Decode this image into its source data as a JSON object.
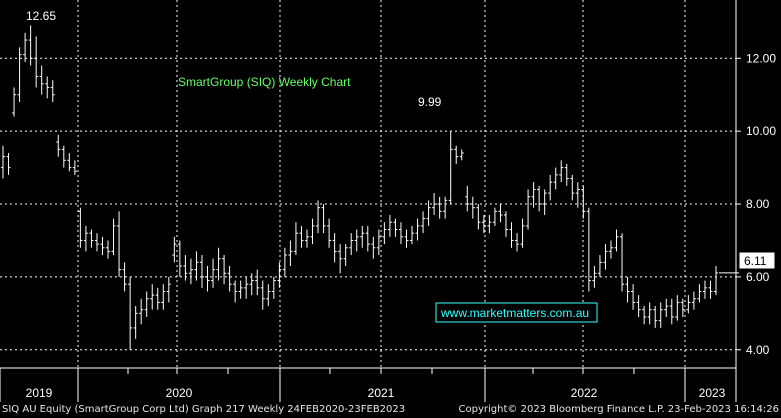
{
  "chart_data": {
    "type": "bar",
    "title": "SmartGroup (SIQ) Weekly Chart",
    "watermark": "www.marketmatters.com.au",
    "x_labels": [
      "2019",
      "2020",
      "2021",
      "2022",
      "2023"
    ],
    "y_ticks": [
      "12.00",
      "10.00",
      "8.00",
      "6.00",
      "4.00"
    ],
    "ylim": [
      3.5,
      13.6
    ],
    "annotations": [
      {
        "label": "12.65",
        "value": 12.65
      },
      {
        "label": "9.99",
        "value": 9.99
      }
    ],
    "last_price": {
      "label": "6.11",
      "value": 6.11
    },
    "colors": {
      "background": "#000000",
      "bars": "#ffffff",
      "grid": "#ffffff",
      "title": "#66ff66",
      "watermark": "#33ffff"
    },
    "bars_ohlc": [
      [
        9.0,
        9.6,
        8.7,
        9.3
      ],
      [
        9.3,
        9.4,
        8.8,
        9.0
      ],
      [
        10.5,
        11.2,
        10.4,
        11.0
      ],
      [
        11.0,
        12.3,
        10.8,
        12.1
      ],
      [
        12.1,
        12.7,
        11.9,
        12.5
      ],
      [
        12.5,
        12.9,
        11.8,
        12.0
      ],
      [
        12.0,
        12.6,
        11.2,
        11.5
      ],
      [
        11.5,
        11.8,
        11.0,
        11.3
      ],
      [
        11.3,
        11.5,
        10.9,
        11.2
      ],
      [
        11.2,
        11.4,
        10.8,
        11.0
      ],
      [
        9.7,
        9.9,
        9.3,
        9.5
      ],
      [
        9.5,
        9.6,
        9.0,
        9.2
      ],
      [
        9.2,
        9.4,
        8.9,
        9.0
      ],
      [
        9.0,
        9.2,
        8.8,
        8.9
      ],
      [
        7.8,
        7.9,
        6.8,
        7.0
      ],
      [
        7.0,
        7.4,
        6.7,
        7.2
      ],
      [
        7.2,
        7.3,
        6.8,
        7.0
      ],
      [
        7.0,
        7.2,
        6.7,
        6.9
      ],
      [
        6.9,
        7.1,
        6.6,
        6.8
      ],
      [
        6.8,
        7.0,
        6.5,
        6.7
      ],
      [
        6.7,
        7.6,
        6.6,
        7.4
      ],
      [
        7.4,
        7.8,
        6.0,
        6.2
      ],
      [
        6.2,
        6.4,
        5.6,
        5.8
      ],
      [
        5.8,
        6.0,
        4.0,
        4.6
      ],
      [
        4.6,
        5.2,
        4.3,
        5.0
      ],
      [
        5.0,
        5.4,
        4.7,
        5.1
      ],
      [
        5.1,
        5.6,
        4.9,
        5.4
      ],
      [
        5.4,
        5.8,
        5.1,
        5.5
      ],
      [
        5.5,
        5.7,
        5.1,
        5.3
      ],
      [
        5.3,
        5.8,
        5.1,
        5.6
      ],
      [
        5.6,
        6.0,
        5.3,
        5.8
      ],
      [
        6.6,
        7.1,
        6.4,
        6.9
      ],
      [
        6.9,
        7.0,
        6.0,
        6.3
      ],
      [
        6.3,
        6.6,
        5.9,
        6.1
      ],
      [
        6.1,
        6.5,
        5.8,
        6.2
      ],
      [
        6.2,
        6.7,
        5.9,
        6.4
      ],
      [
        6.4,
        6.6,
        5.7,
        6.0
      ],
      [
        6.0,
        6.3,
        5.6,
        5.9
      ],
      [
        5.9,
        6.5,
        5.7,
        6.2
      ],
      [
        6.2,
        6.8,
        5.9,
        6.5
      ],
      [
        6.5,
        6.6,
        5.8,
        6.1
      ],
      [
        6.1,
        6.3,
        5.6,
        5.8
      ],
      [
        5.8,
        5.9,
        5.3,
        5.6
      ],
      [
        5.6,
        5.9,
        5.4,
        5.7
      ],
      [
        5.7,
        6.0,
        5.4,
        5.8
      ],
      [
        5.8,
        6.1,
        5.5,
        5.9
      ],
      [
        5.9,
        6.2,
        5.5,
        5.7
      ],
      [
        5.7,
        5.9,
        5.1,
        5.4
      ],
      [
        5.4,
        5.8,
        5.2,
        5.6
      ],
      [
        5.6,
        6.0,
        5.4,
        5.9
      ],
      [
        5.9,
        6.4,
        5.7,
        6.2
      ],
      [
        6.2,
        6.8,
        6.0,
        6.6
      ],
      [
        6.6,
        7.0,
        6.3,
        6.7
      ],
      [
        6.7,
        7.5,
        6.6,
        7.2
      ],
      [
        7.2,
        7.4,
        6.8,
        7.0
      ],
      [
        7.0,
        7.3,
        6.8,
        7.1
      ],
      [
        7.1,
        7.6,
        6.9,
        7.4
      ],
      [
        7.4,
        8.1,
        7.2,
        7.9
      ],
      [
        7.9,
        8.0,
        7.2,
        7.4
      ],
      [
        7.4,
        7.6,
        6.8,
        7.0
      ],
      [
        7.0,
        7.2,
        6.4,
        6.7
      ],
      [
        6.7,
        6.9,
        6.1,
        6.5
      ],
      [
        6.5,
        6.9,
        6.3,
        6.8
      ],
      [
        6.8,
        7.2,
        6.6,
        7.0
      ],
      [
        7.0,
        7.3,
        6.7,
        7.1
      ],
      [
        7.1,
        7.4,
        6.8,
        7.2
      ],
      [
        7.2,
        7.4,
        6.7,
        6.9
      ],
      [
        6.9,
        7.1,
        6.5,
        6.8
      ],
      [
        6.8,
        7.3,
        6.6,
        7.1
      ],
      [
        7.1,
        7.5,
        6.9,
        7.3
      ],
      [
        7.3,
        7.7,
        7.1,
        7.5
      ],
      [
        7.5,
        7.6,
        7.1,
        7.3
      ],
      [
        7.3,
        7.5,
        6.9,
        7.1
      ],
      [
        7.1,
        7.3,
        6.8,
        7.0
      ],
      [
        7.0,
        7.4,
        6.9,
        7.2
      ],
      [
        7.2,
        7.6,
        7.0,
        7.4
      ],
      [
        7.4,
        7.8,
        7.2,
        7.6
      ],
      [
        7.6,
        8.1,
        7.4,
        7.9
      ],
      [
        7.9,
        8.3,
        7.7,
        8.0
      ],
      [
        8.0,
        8.2,
        7.6,
        7.8
      ],
      [
        7.8,
        8.2,
        7.6,
        8.1
      ],
      [
        8.1,
        10.0,
        8.0,
        9.5
      ],
      [
        9.5,
        9.6,
        9.1,
        9.3
      ],
      [
        9.3,
        9.5,
        9.2,
        9.4
      ],
      [
        8.2,
        8.5,
        7.8,
        8.0
      ],
      [
        8.0,
        8.2,
        7.6,
        7.9
      ],
      [
        7.9,
        8.0,
        7.3,
        7.5
      ],
      [
        7.5,
        7.7,
        7.2,
        7.4
      ],
      [
        7.4,
        7.7,
        7.2,
        7.5
      ],
      [
        7.5,
        7.9,
        7.4,
        7.8
      ],
      [
        7.8,
        8.0,
        7.5,
        7.7
      ],
      [
        7.7,
        7.8,
        7.1,
        7.3
      ],
      [
        7.3,
        7.5,
        6.8,
        7.0
      ],
      [
        7.0,
        7.2,
        6.7,
        6.9
      ],
      [
        6.9,
        7.6,
        6.8,
        7.4
      ],
      [
        7.4,
        8.4,
        7.3,
        8.2
      ],
      [
        8.2,
        8.6,
        7.9,
        8.4
      ],
      [
        8.4,
        8.5,
        7.8,
        8.0
      ],
      [
        8.0,
        8.4,
        7.7,
        8.3
      ],
      [
        8.3,
        8.8,
        8.1,
        8.6
      ],
      [
        8.6,
        9.0,
        8.4,
        8.8
      ],
      [
        8.8,
        9.2,
        8.6,
        9.0
      ],
      [
        9.0,
        9.1,
        8.5,
        8.7
      ],
      [
        8.7,
        8.8,
        8.1,
        8.3
      ],
      [
        8.3,
        8.6,
        7.9,
        8.4
      ],
      [
        8.4,
        8.5,
        7.6,
        7.8
      ],
      [
        7.8,
        7.9,
        5.6,
        5.9
      ],
      [
        5.9,
        6.3,
        5.7,
        6.1
      ],
      [
        6.1,
        6.6,
        6.0,
        6.4
      ],
      [
        6.4,
        6.9,
        6.2,
        6.7
      ],
      [
        6.7,
        7.0,
        6.5,
        6.8
      ],
      [
        6.8,
        7.3,
        6.7,
        7.1
      ],
      [
        7.1,
        7.2,
        5.6,
        5.8
      ],
      [
        5.8,
        6.0,
        5.3,
        5.6
      ],
      [
        5.6,
        5.8,
        5.1,
        5.3
      ],
      [
        5.3,
        5.5,
        4.9,
        5.1
      ],
      [
        5.1,
        5.2,
        4.7,
        4.9
      ],
      [
        4.9,
        5.3,
        4.7,
        5.1
      ],
      [
        5.1,
        5.2,
        4.6,
        4.8
      ],
      [
        4.8,
        5.3,
        4.6,
        5.1
      ],
      [
        5.1,
        5.4,
        4.9,
        5.2
      ],
      [
        5.2,
        5.4,
        4.7,
        4.9
      ],
      [
        4.9,
        5.5,
        4.8,
        5.3
      ],
      [
        5.3,
        5.4,
        4.9,
        5.1
      ],
      [
        5.1,
        5.5,
        5.0,
        5.3
      ],
      [
        5.3,
        5.6,
        5.1,
        5.4
      ],
      [
        5.4,
        5.8,
        5.3,
        5.6
      ],
      [
        5.6,
        5.9,
        5.4,
        5.7
      ],
      [
        5.7,
        5.9,
        5.4,
        5.6
      ],
      [
        5.6,
        6.3,
        5.5,
        6.11
      ]
    ]
  },
  "footer": {
    "left": "SIQ AU Equity (SmartGroup Corp Ltd) Graph 217  Weekly 24FEB2020-23FEB2023",
    "right": "Copyright© 2023 Bloomberg Finance L.P.     23-Feb-2023 16:14:26"
  }
}
